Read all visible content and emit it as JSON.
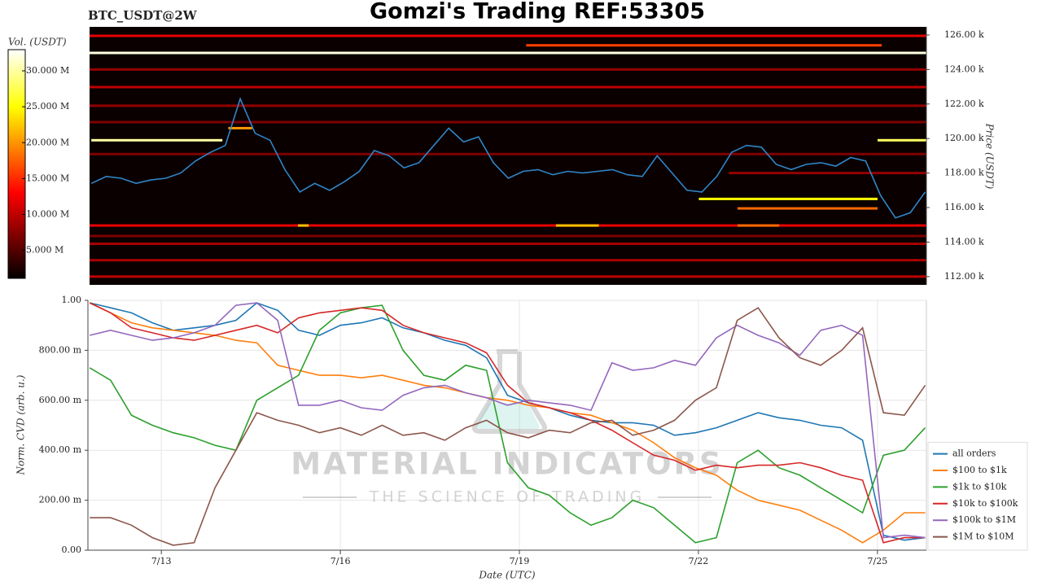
{
  "chart_data": [
    {
      "type": "heatmap",
      "title": "Gomzi's Trading REF:53305",
      "subtitle": "BTC_USDT@2W",
      "y_label": "Price (USDT)",
      "xlim": [
        11.77,
        25.82
      ],
      "ylim": [
        111520,
        126470
      ],
      "yticks": [
        {
          "value": 112000,
          "label": "112.00 k"
        },
        {
          "value": 114000,
          "label": "114.00 k"
        },
        {
          "value": 116000,
          "label": "116.00 k"
        },
        {
          "value": 118000,
          "label": "118.00 k"
        },
        {
          "value": 120000,
          "label": "120.00 k"
        },
        {
          "value": 122000,
          "label": "122.00 k"
        },
        {
          "value": 124000,
          "label": "124.00 k"
        },
        {
          "value": 126000,
          "label": "126.00 k"
        }
      ],
      "color": "#2f86c8",
      "x": [
        11.8,
        12.05,
        12.3,
        12.55,
        12.8,
        13.05,
        13.3,
        13.55,
        13.8,
        14.05,
        14.3,
        14.55,
        14.8,
        15.05,
        15.3,
        15.55,
        15.8,
        16.05,
        16.3,
        16.55,
        16.8,
        17.05,
        17.3,
        17.55,
        17.8,
        18.05,
        18.3,
        18.55,
        18.8,
        19.05,
        19.3,
        19.55,
        19.8,
        20.05,
        20.3,
        20.55,
        20.8,
        21.05,
        21.3,
        21.55,
        21.8,
        22.05,
        22.3,
        22.55,
        22.8,
        23.05,
        23.3,
        23.55,
        23.8,
        24.05,
        24.3,
        24.55,
        24.8,
        25.05,
        25.3,
        25.55,
        25.8
      ],
      "values": [
        117400,
        117800,
        117700,
        117400,
        117600,
        117700,
        118000,
        118700,
        119200,
        119600,
        122300,
        120300,
        119900,
        118200,
        116900,
        117400,
        117000,
        117500,
        118100,
        119300,
        119000,
        118300,
        118600,
        119600,
        120600,
        119800,
        120100,
        118600,
        117700,
        118100,
        118200,
        117900,
        118100,
        118000,
        118100,
        118200,
        117900,
        117800,
        119000,
        118000,
        117000,
        116900,
        117800,
        119200,
        119600,
        119500,
        118500,
        118200,
        118500,
        118600,
        118400,
        118900,
        118700,
        116700,
        115400,
        115700,
        116900
      ],
      "levels": [
        {
          "price": 125950,
          "volume": 12000000,
          "start": 11.77,
          "end": 25.82
        },
        {
          "price": 125400,
          "volume": 16000000,
          "start": 19.1,
          "end": 25.07
        },
        {
          "price": 124960,
          "volume": 32000000,
          "start": 11.77,
          "end": 25.82
        },
        {
          "price": 124000,
          "volume": 8000000,
          "start": 11.77,
          "end": 25.82
        },
        {
          "price": 122980,
          "volume": 10000000,
          "start": 11.77,
          "end": 25.82
        },
        {
          "price": 121900,
          "volume": 8000000,
          "start": 11.77,
          "end": 25.82
        },
        {
          "price": 120950,
          "volume": 7000000,
          "start": 11.77,
          "end": 25.82
        },
        {
          "price": 120600,
          "volume": 20000000,
          "start": 14.1,
          "end": 14.5
        },
        {
          "price": 119900,
          "volume": 30000000,
          "start": 11.8,
          "end": 14.0
        },
        {
          "price": 119900,
          "volume": 28000000,
          "start": 25.0,
          "end": 25.82
        },
        {
          "price": 119100,
          "volume": 7000000,
          "start": 11.77,
          "end": 25.82
        },
        {
          "price": 118000,
          "volume": 8000000,
          "start": 22.5,
          "end": 25.82
        },
        {
          "price": 116500,
          "volume": 25000000,
          "start": 22,
          "end": 25
        },
        {
          "price": 115950,
          "volume": 18000000,
          "start": 22.65,
          "end": 25
        },
        {
          "price": 114960,
          "volume": 12000000,
          "start": 11.77,
          "end": 25.82
        },
        {
          "price": 114960,
          "volume": 22000000,
          "start": 15.27,
          "end": 15.45
        },
        {
          "price": 114960,
          "volume": 22000000,
          "start": 19.6,
          "end": 20.32
        },
        {
          "price": 114960,
          "volume": 18000000,
          "start": 22.65,
          "end": 23.35
        },
        {
          "price": 114350,
          "volume": 7000000,
          "start": 11.77,
          "end": 25.82
        },
        {
          "price": 113900,
          "volume": 9000000,
          "start": 11.77,
          "end": 25.82
        },
        {
          "price": 112950,
          "volume": 9000000,
          "start": 11.77,
          "end": 25.82
        },
        {
          "price": 112000,
          "volume": 10000000,
          "start": 11.77,
          "end": 25.82
        }
      ],
      "colorbar": {
        "label": "Vol. (USDT)",
        "lim": [
          1100000,
          32950000
        ],
        "ticks": [
          {
            "value": 5000000,
            "label": "5.000 M"
          },
          {
            "value": 10000000,
            "label": "10.000 M"
          },
          {
            "value": 15000000,
            "label": "15.000 M"
          },
          {
            "value": 20000000,
            "label": "20.000 M"
          },
          {
            "value": 25000000,
            "label": "25.000 M"
          },
          {
            "value": 30000000,
            "label": "30.000 M"
          }
        ]
      }
    },
    {
      "type": "line",
      "x_label": "Date (UTC)",
      "y_label": "Norm. CVD (arb. u.)",
      "grid": true,
      "legend": "right",
      "watermark": {
        "title": "MATERIAL INDICATORS",
        "subtitle": "THE SCIENCE OF TRADING"
      },
      "xlim": [
        11.77,
        25.82
      ],
      "xticks": [
        {
          "value": 13,
          "label": "7/13"
        },
        {
          "value": 16,
          "label": "7/16"
        },
        {
          "value": 19,
          "label": "7/19"
        },
        {
          "value": 22,
          "label": "7/22"
        },
        {
          "value": 25,
          "label": "7/25"
        }
      ],
      "ylim": [
        0,
        1
      ],
      "yticks": [
        {
          "value": 0,
          "label": "0.00"
        },
        {
          "value": 0.2,
          "label": "200.00 m"
        },
        {
          "value": 0.4,
          "label": "400.00 m"
        },
        {
          "value": 0.6,
          "label": "600.00 m"
        },
        {
          "value": 0.8,
          "label": "800.00 m"
        },
        {
          "value": 1,
          "label": "1.00"
        }
      ],
      "x": [
        11.8,
        12.15,
        12.5,
        12.85,
        13.2,
        13.55,
        13.9,
        14.25,
        14.6,
        14.95,
        15.3,
        15.65,
        16,
        16.35,
        16.7,
        17.05,
        17.4,
        17.75,
        18.1,
        18.45,
        18.8,
        19.15,
        19.5,
        19.85,
        20.2,
        20.55,
        20.9,
        21.25,
        21.6,
        21.95,
        22.3,
        22.65,
        23,
        23.35,
        23.7,
        24.05,
        24.4,
        24.75,
        25.1,
        25.45,
        25.8
      ],
      "series": [
        {
          "name": "all orders",
          "color": "#1f77b4",
          "values": [
            0.99,
            0.97,
            0.95,
            0.91,
            0.88,
            0.89,
            0.9,
            0.92,
            0.99,
            0.96,
            0.88,
            0.86,
            0.9,
            0.91,
            0.93,
            0.89,
            0.87,
            0.84,
            0.82,
            0.77,
            0.62,
            0.59,
            0.57,
            0.54,
            0.52,
            0.51,
            0.51,
            0.5,
            0.46,
            0.47,
            0.49,
            0.52,
            0.55,
            0.53,
            0.52,
            0.5,
            0.49,
            0.44,
            0.06,
            0.04,
            0.05
          ]
        },
        {
          "name": "$100 to $1k",
          "color": "#ff7f0e",
          "values": [
            0.99,
            0.95,
            0.91,
            0.89,
            0.88,
            0.87,
            0.86,
            0.84,
            0.83,
            0.74,
            0.72,
            0.7,
            0.7,
            0.69,
            0.7,
            0.68,
            0.66,
            0.65,
            0.63,
            0.61,
            0.6,
            0.58,
            0.57,
            0.55,
            0.54,
            0.51,
            0.48,
            0.43,
            0.37,
            0.33,
            0.3,
            0.24,
            0.2,
            0.18,
            0.16,
            0.12,
            0.08,
            0.03,
            0.08,
            0.15,
            0.15
          ]
        },
        {
          "name": "$1k to $10k",
          "color": "#2ca02c",
          "values": [
            0.73,
            0.68,
            0.54,
            0.5,
            0.47,
            0.45,
            0.42,
            0.4,
            0.6,
            0.65,
            0.7,
            0.88,
            0.95,
            0.97,
            0.98,
            0.8,
            0.7,
            0.68,
            0.74,
            0.72,
            0.35,
            0.25,
            0.22,
            0.15,
            0.1,
            0.13,
            0.2,
            0.17,
            0.1,
            0.03,
            0.05,
            0.35,
            0.4,
            0.33,
            0.3,
            0.25,
            0.2,
            0.15,
            0.38,
            0.4,
            0.49
          ]
        },
        {
          "name": "$10k to $100k",
          "color": "#d62728",
          "values": [
            0.99,
            0.95,
            0.89,
            0.87,
            0.85,
            0.84,
            0.86,
            0.88,
            0.9,
            0.87,
            0.93,
            0.95,
            0.96,
            0.97,
            0.96,
            0.9,
            0.87,
            0.85,
            0.83,
            0.79,
            0.66,
            0.59,
            0.57,
            0.55,
            0.52,
            0.48,
            0.43,
            0.38,
            0.36,
            0.32,
            0.34,
            0.33,
            0.34,
            0.34,
            0.35,
            0.33,
            0.3,
            0.28,
            0.03,
            0.05,
            0.05
          ]
        },
        {
          "name": "$100k to $1M",
          "color": "#9467bd",
          "values": [
            0.86,
            0.88,
            0.86,
            0.84,
            0.85,
            0.87,
            0.9,
            0.98,
            0.99,
            0.92,
            0.58,
            0.58,
            0.6,
            0.57,
            0.56,
            0.62,
            0.65,
            0.66,
            0.63,
            0.61,
            0.58,
            0.6,
            0.59,
            0.58,
            0.56,
            0.75,
            0.72,
            0.73,
            0.76,
            0.74,
            0.85,
            0.9,
            0.86,
            0.83,
            0.78,
            0.88,
            0.9,
            0.86,
            0.05,
            0.06,
            0.05
          ]
        },
        {
          "name": "$1M to $10M",
          "color": "#8c564b",
          "values": [
            0.13,
            0.13,
            0.1,
            0.05,
            0.02,
            0.03,
            0.25,
            0.4,
            0.55,
            0.52,
            0.5,
            0.47,
            0.49,
            0.46,
            0.5,
            0.46,
            0.47,
            0.44,
            0.49,
            0.52,
            0.47,
            0.45,
            0.48,
            0.47,
            0.51,
            0.52,
            0.46,
            0.48,
            0.52,
            0.6,
            0.65,
            0.92,
            0.97,
            0.85,
            0.77,
            0.74,
            0.8,
            0.89,
            0.55,
            0.54,
            0.66
          ]
        }
      ]
    }
  ]
}
